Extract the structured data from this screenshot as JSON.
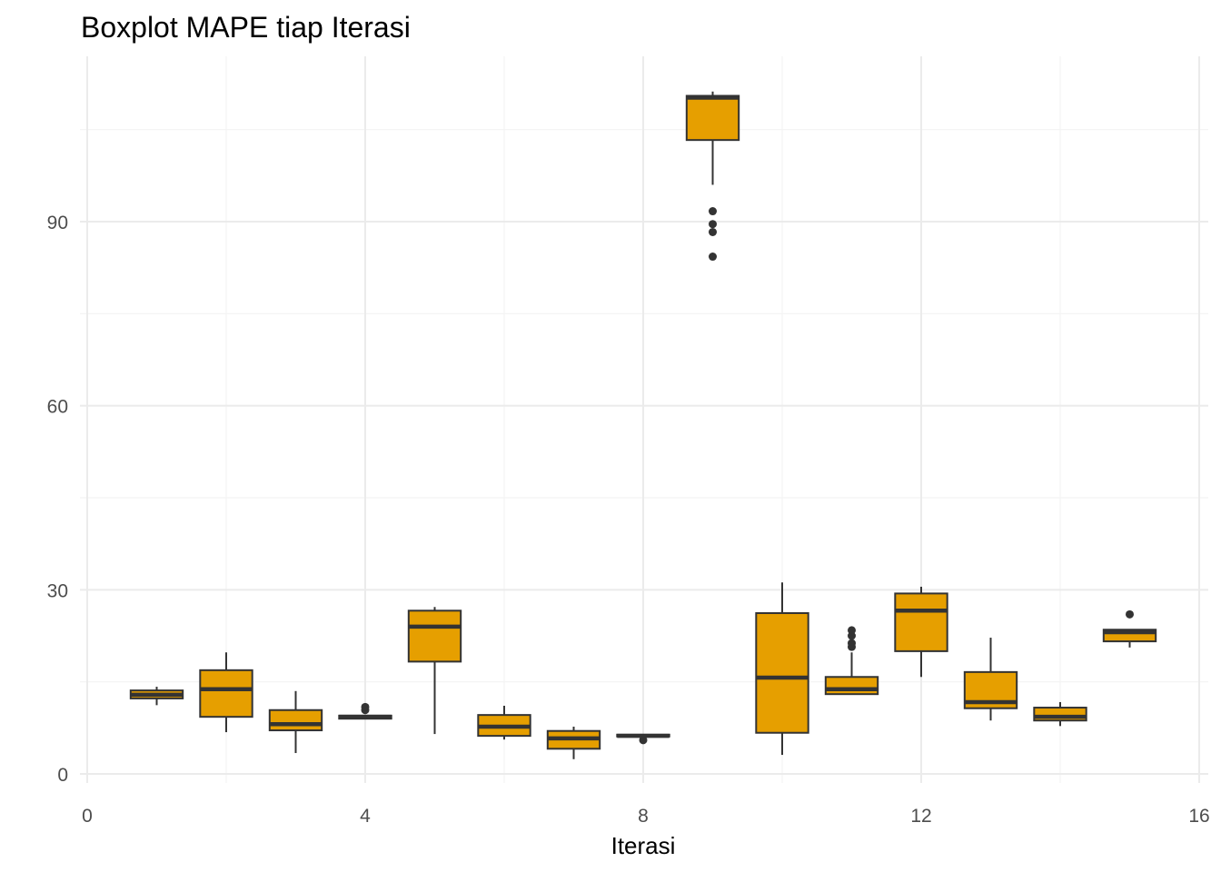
{
  "chart_data": {
    "type": "box",
    "title": "Boxplot MAPE tiap Iterasi",
    "xlabel": "Iterasi",
    "ylabel": "",
    "xlim": [
      0,
      16
    ],
    "ylim": [
      0,
      112
    ],
    "x_ticks": [
      0,
      4,
      8,
      12,
      16
    ],
    "y_ticks": [
      0,
      30,
      60,
      90
    ],
    "grid": true,
    "fill_color": "#E69F00",
    "line_color": "#333333",
    "boxes": [
      {
        "x": 1,
        "lower": 11.2,
        "q1": 12.3,
        "median": 12.9,
        "q3": 13.6,
        "upper": 14.2,
        "outliers": []
      },
      {
        "x": 2,
        "lower": 6.8,
        "q1": 9.3,
        "median": 13.8,
        "q3": 16.9,
        "upper": 19.8,
        "outliers": []
      },
      {
        "x": 3,
        "lower": 3.4,
        "q1": 7.1,
        "median": 8.1,
        "q3": 10.4,
        "upper": 13.5,
        "outliers": []
      },
      {
        "x": 4,
        "lower": 9.0,
        "q1": 9.0,
        "median": 9.3,
        "q3": 9.5,
        "upper": 9.5,
        "outliers": [
          10.4,
          10.9
        ]
      },
      {
        "x": 5,
        "lower": 6.5,
        "q1": 18.3,
        "median": 24.0,
        "q3": 26.6,
        "upper": 27.2,
        "outliers": []
      },
      {
        "x": 6,
        "lower": 5.6,
        "q1": 6.2,
        "median": 7.7,
        "q3": 9.6,
        "upper": 11.1,
        "outliers": []
      },
      {
        "x": 7,
        "lower": 2.4,
        "q1": 4.1,
        "median": 5.8,
        "q3": 7.0,
        "upper": 7.7,
        "outliers": []
      },
      {
        "x": 8,
        "lower": 6.1,
        "q1": 6.1,
        "median": 6.2,
        "q3": 6.4,
        "upper": 6.4,
        "outliers": [
          5.5
        ]
      },
      {
        "x": 9,
        "lower": 96.0,
        "q1": 103.3,
        "median": 110.2,
        "q3": 110.5,
        "upper": 111.2,
        "outliers": [
          91.7,
          89.6,
          88.3,
          84.3
        ]
      },
      {
        "x": 10,
        "lower": 3.1,
        "q1": 6.7,
        "median": 15.7,
        "q3": 26.2,
        "upper": 31.2,
        "outliers": []
      },
      {
        "x": 11,
        "lower": 13.0,
        "q1": 13.0,
        "median": 13.8,
        "q3": 15.8,
        "upper": 19.8,
        "outliers": [
          20.7,
          21.3,
          22.5,
          23.4
        ]
      },
      {
        "x": 12,
        "lower": 15.8,
        "q1": 20.0,
        "median": 26.6,
        "q3": 29.4,
        "upper": 30.5,
        "outliers": []
      },
      {
        "x": 13,
        "lower": 8.7,
        "q1": 10.7,
        "median": 11.7,
        "q3": 16.6,
        "upper": 22.2,
        "outliers": []
      },
      {
        "x": 14,
        "lower": 7.8,
        "q1": 8.7,
        "median": 9.3,
        "q3": 10.8,
        "upper": 11.7,
        "outliers": []
      },
      {
        "x": 15,
        "lower": 20.6,
        "q1": 21.6,
        "median": 23.1,
        "q3": 23.5,
        "upper": 23.5,
        "outliers": [
          26.0
        ]
      }
    ]
  }
}
